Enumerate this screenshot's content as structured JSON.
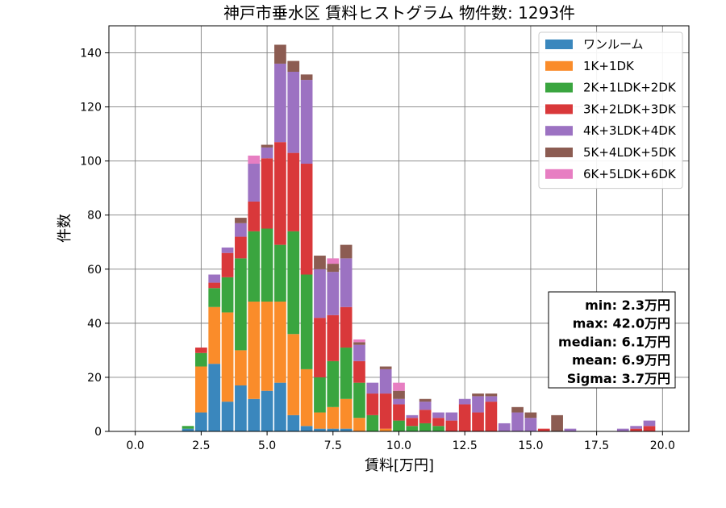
{
  "chart_data": {
    "type": "bar",
    "stacked": true,
    "title": "神戸市垂水区 賃料ヒストグラム  物件数: 1293件",
    "xlabel": "賃料[万円]",
    "ylabel": "件数",
    "xlim": [
      -1.0,
      21.0
    ],
    "ylim": [
      0,
      150
    ],
    "xticks": [
      "0.0",
      "2.5",
      "5.0",
      "7.5",
      "10.0",
      "12.5",
      "15.0",
      "17.5",
      "20.0"
    ],
    "xtick_values": [
      0,
      2.5,
      5,
      7.5,
      10,
      12.5,
      15,
      17.5,
      20
    ],
    "yticks": [
      "0",
      "20",
      "40",
      "60",
      "80",
      "100",
      "120",
      "140"
    ],
    "ytick_values": [
      0,
      20,
      40,
      60,
      80,
      100,
      120,
      140
    ],
    "grid": true,
    "legend_position": "top-right",
    "bin_width": 0.5,
    "x": [
      2.0,
      2.5,
      3.0,
      3.5,
      4.0,
      4.5,
      5.0,
      5.5,
      6.0,
      6.5,
      7.0,
      7.5,
      8.0,
      8.5,
      9.0,
      9.5,
      10.0,
      10.5,
      11.0,
      11.5,
      12.0,
      12.5,
      13.0,
      13.5,
      14.0,
      14.5,
      15.0,
      15.5,
      16.0,
      16.5,
      17.0,
      17.5,
      18.0,
      18.5,
      19.0,
      19.5
    ],
    "series": [
      {
        "name": "ワンルーム",
        "color": "#3a87bd",
        "values": [
          1,
          7,
          25,
          11,
          17,
          12,
          15,
          18,
          6,
          2,
          1,
          1,
          1,
          0,
          0,
          0,
          0,
          0,
          0,
          0,
          0,
          0,
          0,
          0,
          0,
          0,
          0,
          0,
          0,
          0,
          0,
          0,
          0,
          0,
          0,
          0
        ]
      },
      {
        "name": "1K+1DK",
        "color": "#fa8c2a",
        "values": [
          0,
          17,
          21,
          33,
          13,
          36,
          33,
          30,
          30,
          21,
          6,
          8,
          11,
          5,
          0,
          1,
          0,
          0,
          0,
          0,
          0,
          0,
          0,
          0,
          0,
          0,
          0,
          0,
          0,
          0,
          0,
          0,
          0,
          0,
          0,
          0
        ]
      },
      {
        "name": "2K+1LDK+2DK",
        "color": "#3aa53f",
        "values": [
          1,
          5,
          7,
          13,
          34,
          26,
          27,
          21,
          38,
          35,
          13,
          17,
          19,
          13,
          6,
          0,
          4,
          2,
          3,
          2,
          0,
          0,
          0,
          0,
          0,
          0,
          0,
          0,
          0,
          0,
          0,
          0,
          0,
          0,
          0,
          0
        ]
      },
      {
        "name": "3K+2LDK+3DK",
        "color": "#d9383a",
        "values": [
          0,
          2,
          2,
          9,
          8,
          11,
          26,
          38,
          29,
          41,
          22,
          17,
          15,
          8,
          8,
          13,
          6,
          3,
          5,
          3,
          4,
          10,
          7,
          11,
          0,
          0,
          0,
          1,
          0,
          0,
          0,
          0,
          0,
          0,
          1,
          2
        ]
      },
      {
        "name": "4K+3LDK+4DK",
        "color": "#9c72c2",
        "values": [
          0,
          0,
          3,
          2,
          5,
          14,
          4,
          29,
          30,
          31,
          18,
          16,
          18,
          6,
          4,
          9,
          2,
          1,
          3,
          2,
          3,
          2,
          6,
          2,
          3,
          7,
          5,
          0,
          0,
          1,
          0,
          0,
          0,
          1,
          1,
          2
        ]
      },
      {
        "name": "5K+4LDK+5DK",
        "color": "#8c5c52",
        "values": [
          0,
          0,
          0,
          0,
          2,
          0,
          1,
          7,
          4,
          2,
          5,
          3,
          5,
          1,
          0,
          1,
          3,
          0,
          1,
          0,
          0,
          0,
          1,
          1,
          0,
          2,
          2,
          0,
          6,
          0,
          0,
          0,
          0,
          0,
          0,
          0
        ]
      },
      {
        "name": "6K+5LDK+6DK",
        "color": "#e77ec2",
        "values": [
          0,
          0,
          0,
          0,
          0,
          3,
          0,
          0,
          0,
          0,
          0,
          2,
          0,
          1,
          0,
          0,
          3,
          0,
          0,
          0,
          0,
          0,
          0,
          0,
          0,
          0,
          0,
          0,
          0,
          0,
          0,
          0,
          0,
          0,
          0,
          0
        ]
      }
    ],
    "stats": [
      "min: 2.3万円",
      "max: 42.0万円",
      "median: 6.1万円",
      "mean: 6.9万円",
      "Sigma: 3.7万円"
    ]
  }
}
